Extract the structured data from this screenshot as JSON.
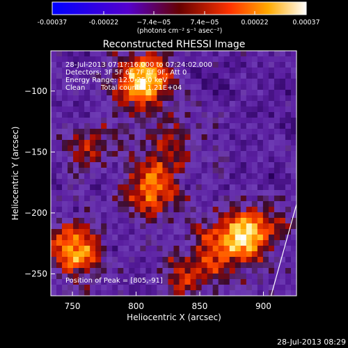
{
  "colorbar": {
    "ticks": [
      "-0.00037",
      "-0.00022",
      "−7.4e−05",
      "7.4e−05",
      "0.00022",
      "0.00037"
    ],
    "values": [
      -0.00037,
      -0.00022,
      -7.4e-05,
      7.4e-05,
      0.00022,
      0.00037
    ],
    "range": [
      -0.00037,
      0.00037
    ],
    "units": "(photons cm⁻² s⁻¹ asec⁻²)",
    "colors": [
      "#0000ff",
      "#6600cc",
      "#cc0000",
      "#ff8800",
      "#ffffff"
    ]
  },
  "chart_data": {
    "type": "heatmap",
    "title": "Reconstructed RHESSI Image",
    "xlabel": "Heliocentric X (arcsec)",
    "ylabel": "Heliocentric Y (arcsec)",
    "xlim": [
      733,
      926
    ],
    "ylim": [
      -268,
      -67
    ],
    "x_ticks": [
      750,
      800,
      850,
      900
    ],
    "y_ticks": [
      -100,
      -150,
      -200,
      -250
    ],
    "annotations": {
      "time_range": "28-Jul-2013 07:1?:16.000 to 07:24:02.000",
      "detectors": "Detectors: 3F 5F 6F 7F 8F 9F, Att 0",
      "energy_range": "Energy Range: 12.0-25.0 keV",
      "clean": "Clean",
      "total_counts": "Total counts: 1.21E+04",
      "peak": "Position of Peak = [805,-91]"
    },
    "hotspots": [
      {
        "x": 805,
        "y": -91,
        "intensity": 1.0
      },
      {
        "x": 752,
        "y": -230,
        "intensity": 0.85
      },
      {
        "x": 813,
        "y": -182,
        "intensity": 0.75
      },
      {
        "x": 870,
        "y": -225,
        "intensity": 0.6
      },
      {
        "x": 895,
        "y": -215,
        "intensity": 0.7
      },
      {
        "x": 762,
        "y": -145,
        "intensity": 0.45
      },
      {
        "x": 840,
        "y": -250,
        "intensity": 0.5
      },
      {
        "x": 825,
        "y": -140,
        "intensity": 0.4
      }
    ],
    "limb_line": [
      [
        906,
        -268
      ],
      [
        926,
        -193
      ]
    ]
  },
  "footer_date": "28-Jul-2013 08:29"
}
